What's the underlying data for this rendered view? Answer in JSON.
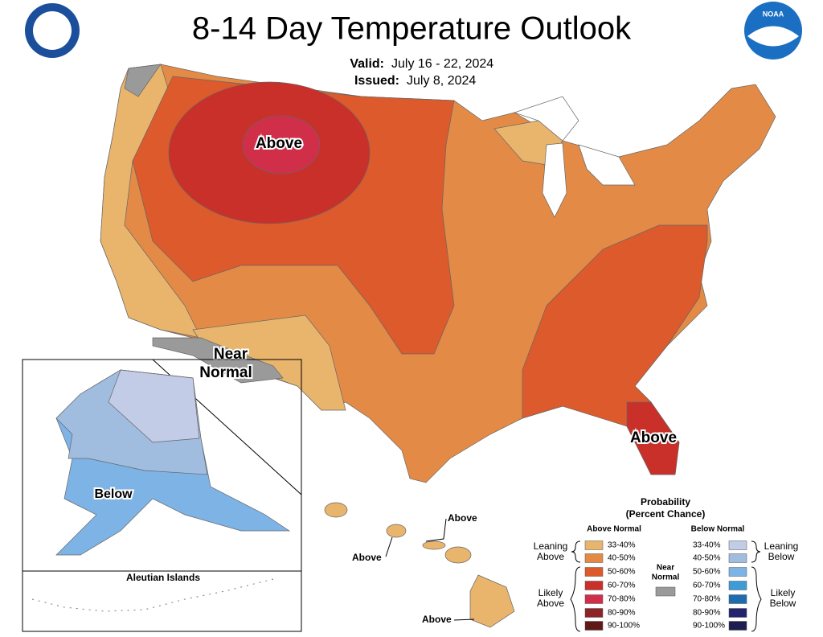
{
  "header": {
    "title": "8-14 Day Temperature Outlook",
    "valid_label": "Valid:",
    "valid": "July 16 - 22, 2024",
    "issued_label": "Issued:",
    "issued": "July 8, 2024"
  },
  "logos": {
    "noaa": "NOAA"
  },
  "map_labels": {
    "conus_west": "Above",
    "florida": "Above",
    "near_normal": [
      "Near",
      "Normal"
    ],
    "alaska": "Below",
    "aleutian": "Aleutian Islands",
    "hawaii": [
      "Above",
      "Above",
      "Above"
    ]
  },
  "legend": {
    "title": [
      "Probability",
      "(Percent Chance)"
    ],
    "above_header": "Above Normal",
    "below_header": "Below Normal",
    "above": [
      {
        "range": "33-40%",
        "color": "#e9b46c"
      },
      {
        "range": "40-50%",
        "color": "#e38b46"
      },
      {
        "range": "50-60%",
        "color": "#dc5a2c"
      },
      {
        "range": "60-70%",
        "color": "#c9302a"
      },
      {
        "range": "70-80%",
        "color": "#d12e4a"
      },
      {
        "range": "80-90%",
        "color": "#8e2327"
      },
      {
        "range": "90-100%",
        "color": "#5e1a16"
      }
    ],
    "below": [
      {
        "range": "33-40%",
        "color": "#c3cce6"
      },
      {
        "range": "40-50%",
        "color": "#a0bde0"
      },
      {
        "range": "50-60%",
        "color": "#7eb3e6"
      },
      {
        "range": "60-70%",
        "color": "#3e9bd6"
      },
      {
        "range": "70-80%",
        "color": "#1f6bb0"
      },
      {
        "range": "80-90%",
        "color": "#23236e"
      },
      {
        "range": "90-100%",
        "color": "#1d1d4f"
      }
    ],
    "near_normal": {
      "label": [
        "Near",
        "Normal"
      ],
      "color": "#9a9a9a"
    },
    "groups": {
      "leaning_above": [
        "Leaning",
        "Above"
      ],
      "likely_above": [
        "Likely",
        "Above"
      ],
      "leaning_below": [
        "Leaning",
        "Below"
      ],
      "likely_below": [
        "Likely",
        "Below"
      ]
    }
  }
}
